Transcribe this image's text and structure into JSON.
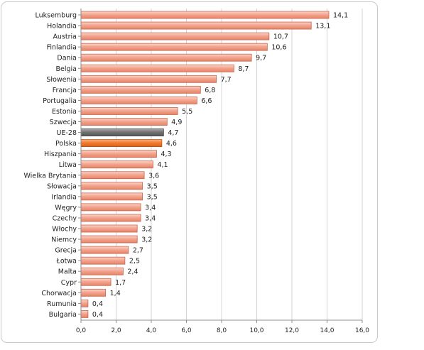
{
  "chart_data": {
    "type": "bar",
    "orientation": "horizontal",
    "categories": [
      "Luksemburg",
      "Holandia",
      "Austria",
      "Finlandia",
      "Dania",
      "Belgia",
      "Słowenia",
      "Francja",
      "Portugalia",
      "Estonia",
      "Szwecja",
      "UE-28",
      "Polska",
      "Hiszpania",
      "Litwa",
      "Wielka Brytania",
      "Słowacja",
      "Irlandia",
      "Węgry",
      "Czechy",
      "Włochy",
      "Niemcy",
      "Grecja",
      "Łotwa",
      "Malta",
      "Cypr",
      "Chorwacja",
      "Rumunia",
      "Bulgaria"
    ],
    "values": [
      14.1,
      13.1,
      10.7,
      10.6,
      9.7,
      8.7,
      7.7,
      6.8,
      6.6,
      5.5,
      4.9,
      4.7,
      4.6,
      4.3,
      4.1,
      3.6,
      3.5,
      3.5,
      3.4,
      3.4,
      3.2,
      3.2,
      2.7,
      2.5,
      2.4,
      1.7,
      1.4,
      0.4,
      0.4
    ],
    "value_labels": [
      "14,1",
      "13,1",
      "10,7",
      "10,6",
      "9,7",
      "8,7",
      "7,7",
      "6,8",
      "6,6",
      "5,5",
      "4,9",
      "4,7",
      "4,6",
      "4,3",
      "4,1",
      "3,6",
      "3,5",
      "3,5",
      "3,4",
      "3,4",
      "3,2",
      "3,2",
      "2,7",
      "2,5",
      "2,4",
      "1,7",
      "1,4",
      "0,4",
      "0,4"
    ],
    "x_ticks": [
      0,
      2,
      4,
      6,
      8,
      10,
      12,
      14,
      16
    ],
    "x_tick_labels": [
      "0,0",
      "2,0",
      "4,0",
      "6,0",
      "8,0",
      "10,0",
      "12,0",
      "14,0",
      "16,0"
    ],
    "xlim": [
      0,
      16
    ],
    "grid": "vertical",
    "legend": "none",
    "title": "",
    "xlabel": "",
    "ylabel": "",
    "colors": {
      "default_bar": "#f2a08a",
      "default_bar_edge": "#c9634b",
      "highlight_ue28": "#6f6f6f",
      "highlight_ue28_edge": "#404040",
      "highlight_polska": "#f07a2d",
      "highlight_polska_edge": "#c0500f"
    },
    "highlights": {
      "UE-28": "highlight_ue28",
      "Polska": "highlight_polska"
    }
  }
}
